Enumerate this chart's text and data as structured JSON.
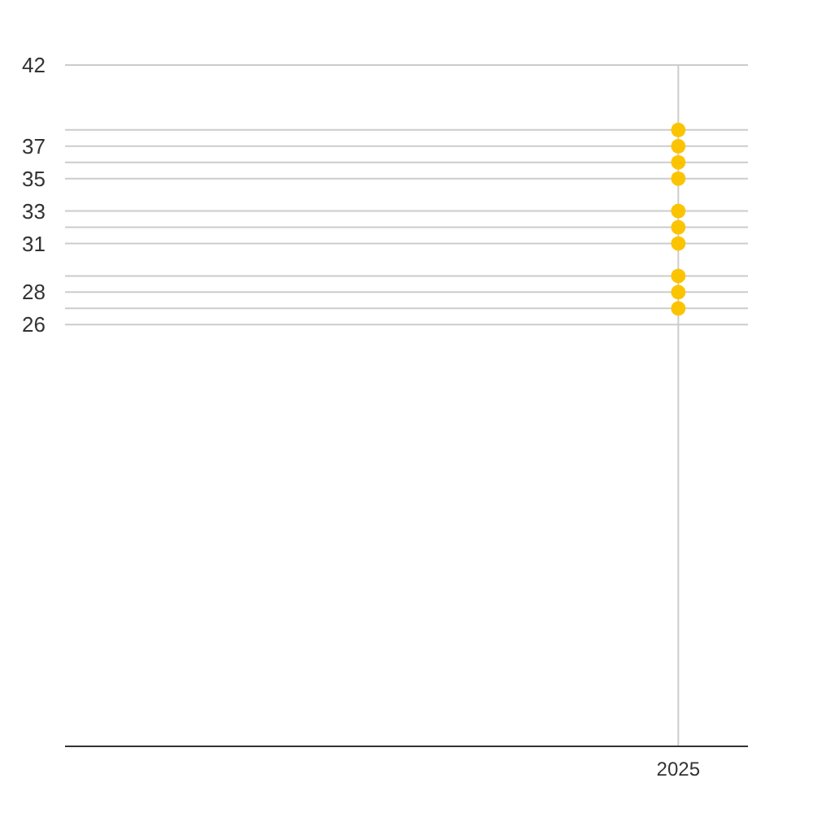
{
  "chart_data": {
    "type": "scatter",
    "categories": [
      "2025"
    ],
    "series": [
      {
        "color": "#fcc400",
        "values": [
          38
        ]
      },
      {
        "color": "#fcc400",
        "values": [
          37
        ]
      },
      {
        "color": "#fcc400",
        "values": [
          36
        ]
      },
      {
        "color": "#fcc400",
        "values": [
          35
        ]
      },
      {
        "color": "#fcc400",
        "values": [
          33
        ]
      },
      {
        "color": "#fcc400",
        "values": [
          32
        ]
      },
      {
        "color": "#fcc400",
        "values": [
          31
        ]
      },
      {
        "color": "#fcc400",
        "values": [
          29
        ]
      },
      {
        "color": "#fcc400",
        "values": [
          28
        ]
      },
      {
        "color": "#fcc400",
        "values": [
          27
        ]
      }
    ],
    "ylim": [
      0,
      42
    ],
    "yticks": [
      42,
      {
        "value": 38,
        "label": null
      },
      37,
      {
        "value": 36,
        "label": null
      },
      35,
      33,
      {
        "value": 32,
        "label": null
      },
      31,
      {
        "value": 29,
        "label": null
      },
      28,
      {
        "value": 27,
        "label": null
      },
      26
    ],
    "grid": true,
    "marker": "circle"
  }
}
